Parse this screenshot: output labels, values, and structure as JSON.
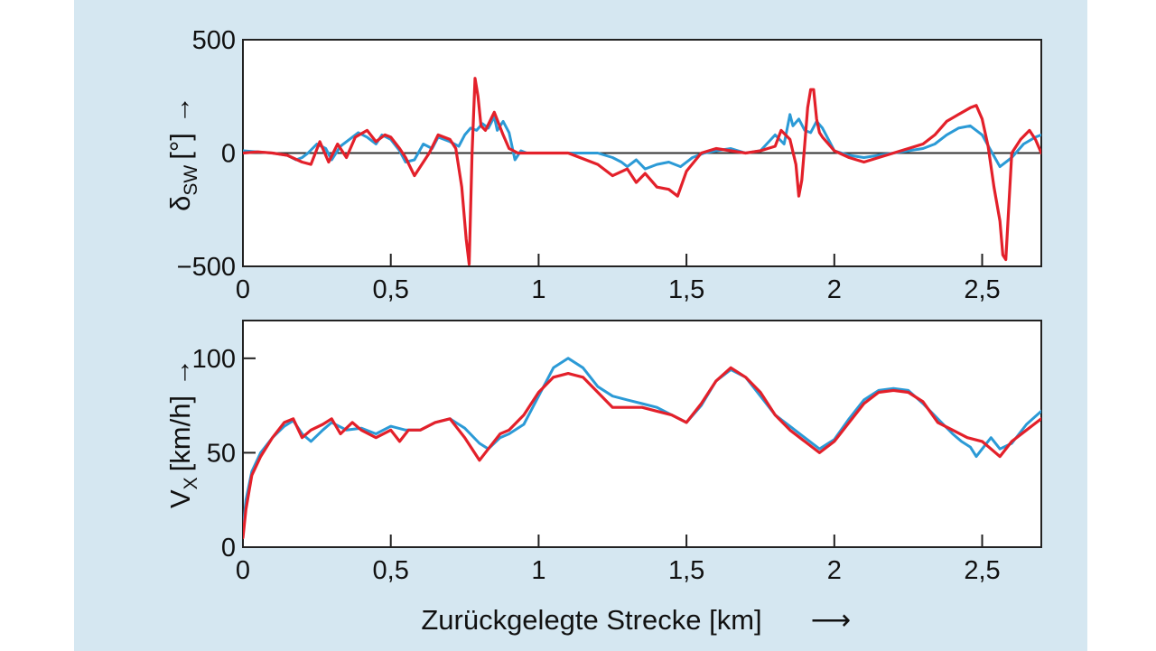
{
  "chart_data": [
    {
      "type": "line",
      "ylabel": "δ",
      "ylabel_sub": "SW",
      "ylabel_unit": "[°]",
      "arrow": "→",
      "xlim": [
        0,
        2.7
      ],
      "ylim": [
        -500,
        500
      ],
      "x_ticks": [
        0,
        0.5,
        1,
        1.5,
        2,
        2.5
      ],
      "x_tick_labels": [
        "0",
        "0,5",
        "1",
        "1,5",
        "2",
        "2,5"
      ],
      "y_ticks": [
        -500,
        0,
        500
      ],
      "y_tick_labels": [
        "−500",
        "0",
        "500"
      ],
      "zero_line": true,
      "grid": false,
      "series": [
        {
          "color": "#2b9ad6",
          "x": [
            0,
            0.05,
            0.1,
            0.15,
            0.18,
            0.2,
            0.22,
            0.25,
            0.28,
            0.3,
            0.33,
            0.36,
            0.39,
            0.42,
            0.45,
            0.47,
            0.5,
            0.53,
            0.55,
            0.58,
            0.61,
            0.64,
            0.66,
            0.7,
            0.73,
            0.75,
            0.77,
            0.79,
            0.81,
            0.83,
            0.85,
            0.86,
            0.88,
            0.9,
            0.92,
            0.94,
            0.96,
            1.0,
            1.1,
            1.2,
            1.25,
            1.28,
            1.3,
            1.33,
            1.36,
            1.4,
            1.44,
            1.48,
            1.52,
            1.56,
            1.6,
            1.65,
            1.7,
            1.75,
            1.8,
            1.83,
            1.85,
            1.86,
            1.88,
            1.9,
            1.92,
            1.94,
            1.96,
            1.98,
            2.0,
            2.05,
            2.1,
            2.15,
            2.2,
            2.25,
            2.3,
            2.34,
            2.38,
            2.42,
            2.46,
            2.5,
            2.53,
            2.56,
            2.6,
            2.64,
            2.68,
            2.7
          ],
          "y": [
            10,
            5,
            0,
            -10,
            -30,
            -20,
            0,
            40,
            20,
            -30,
            30,
            60,
            90,
            70,
            40,
            80,
            60,
            10,
            -40,
            -30,
            40,
            20,
            70,
            50,
            30,
            80,
            110,
            100,
            130,
            110,
            160,
            100,
            140,
            90,
            -30,
            10,
            0,
            0,
            0,
            0,
            -20,
            -40,
            -60,
            -30,
            -70,
            -50,
            -40,
            -60,
            -20,
            0,
            10,
            20,
            0,
            10,
            80,
            40,
            170,
            120,
            150,
            100,
            90,
            140,
            110,
            60,
            10,
            -10,
            -20,
            -10,
            0,
            10,
            20,
            40,
            80,
            110,
            120,
            80,
            10,
            -60,
            -20,
            40,
            70,
            80
          ]
        },
        {
          "color": "#e3202a",
          "x": [
            0,
            0.05,
            0.1,
            0.15,
            0.2,
            0.23,
            0.26,
            0.29,
            0.32,
            0.35,
            0.38,
            0.42,
            0.45,
            0.48,
            0.5,
            0.53,
            0.55,
            0.58,
            0.6,
            0.63,
            0.66,
            0.7,
            0.72,
            0.74,
            0.755,
            0.765,
            0.775,
            0.785,
            0.795,
            0.805,
            0.82,
            0.85,
            0.88,
            0.9,
            0.93,
            0.95,
            1.0,
            1.1,
            1.2,
            1.25,
            1.3,
            1.33,
            1.36,
            1.4,
            1.44,
            1.47,
            1.5,
            1.55,
            1.6,
            1.65,
            1.7,
            1.75,
            1.8,
            1.82,
            1.85,
            1.87,
            1.88,
            1.89,
            1.9,
            1.91,
            1.92,
            1.93,
            1.94,
            1.95,
            1.96,
            1.98,
            2.0,
            2.05,
            2.1,
            2.15,
            2.2,
            2.25,
            2.3,
            2.34,
            2.38,
            2.42,
            2.46,
            2.48,
            2.5,
            2.52,
            2.54,
            2.56,
            2.57,
            2.58,
            2.6,
            2.63,
            2.66,
            2.68,
            2.7
          ],
          "y": [
            0,
            5,
            0,
            -10,
            -40,
            -50,
            50,
            -40,
            40,
            -20,
            70,
            100,
            50,
            80,
            70,
            20,
            -20,
            -100,
            -60,
            0,
            80,
            60,
            20,
            -150,
            -380,
            -490,
            0,
            330,
            250,
            120,
            100,
            180,
            80,
            20,
            0,
            0,
            0,
            0,
            -50,
            -100,
            -70,
            -130,
            -90,
            -150,
            -160,
            -190,
            -80,
            0,
            20,
            10,
            0,
            10,
            30,
            100,
            60,
            -50,
            -190,
            -120,
            40,
            200,
            280,
            280,
            150,
            90,
            70,
            40,
            10,
            -20,
            -40,
            -20,
            0,
            20,
            40,
            80,
            140,
            170,
            200,
            210,
            150,
            30,
            -150,
            -300,
            -450,
            -470,
            0,
            60,
            100,
            60,
            0
          ]
        }
      ]
    },
    {
      "type": "line",
      "ylabel": "V",
      "ylabel_sub": "X",
      "ylabel_unit": "[km/h]",
      "arrow": "→",
      "xlabel": "Zurückgelegte Strecke [km]",
      "xlabel_arrow": "⟶",
      "xlim": [
        0,
        2.7
      ],
      "ylim": [
        0,
        120
      ],
      "x_ticks": [
        0,
        0.5,
        1,
        1.5,
        2,
        2.5
      ],
      "x_tick_labels": [
        "0",
        "0,5",
        "1",
        "1,5",
        "2",
        "2,5"
      ],
      "y_ticks": [
        0,
        50,
        100
      ],
      "y_tick_labels": [
        "0",
        "50",
        "100"
      ],
      "grid": false,
      "series": [
        {
          "color": "#2b9ad6",
          "x": [
            0,
            0.01,
            0.03,
            0.06,
            0.1,
            0.14,
            0.17,
            0.2,
            0.23,
            0.27,
            0.3,
            0.35,
            0.4,
            0.45,
            0.5,
            0.55,
            0.6,
            0.65,
            0.7,
            0.75,
            0.8,
            0.83,
            0.87,
            0.9,
            0.95,
            1.0,
            1.05,
            1.1,
            1.15,
            1.2,
            1.25,
            1.3,
            1.35,
            1.4,
            1.45,
            1.5,
            1.55,
            1.6,
            1.65,
            1.7,
            1.75,
            1.8,
            1.85,
            1.9,
            1.95,
            2.0,
            2.05,
            2.1,
            2.15,
            2.2,
            2.25,
            2.3,
            2.35,
            2.4,
            2.43,
            2.46,
            2.48,
            2.5,
            2.53,
            2.56,
            2.6,
            2.65,
            2.7
          ],
          "y": [
            8,
            25,
            40,
            50,
            58,
            64,
            67,
            60,
            56,
            62,
            66,
            62,
            63,
            60,
            64,
            62,
            62,
            66,
            68,
            63,
            55,
            52,
            58,
            60,
            65,
            80,
            95,
            100,
            95,
            85,
            80,
            78,
            76,
            74,
            70,
            66,
            75,
            88,
            94,
            90,
            80,
            70,
            64,
            58,
            52,
            57,
            68,
            78,
            83,
            84,
            83,
            76,
            68,
            60,
            56,
            53,
            48,
            52,
            58,
            52,
            55,
            65,
            72
          ]
        },
        {
          "color": "#e3202a",
          "x": [
            0,
            0.01,
            0.03,
            0.06,
            0.1,
            0.14,
            0.17,
            0.2,
            0.23,
            0.27,
            0.3,
            0.33,
            0.37,
            0.4,
            0.45,
            0.5,
            0.53,
            0.56,
            0.6,
            0.65,
            0.7,
            0.75,
            0.8,
            0.83,
            0.87,
            0.9,
            0.95,
            1.0,
            1.05,
            1.1,
            1.15,
            1.2,
            1.25,
            1.3,
            1.35,
            1.4,
            1.45,
            1.5,
            1.55,
            1.6,
            1.65,
            1.7,
            1.75,
            1.8,
            1.85,
            1.9,
            1.95,
            2.0,
            2.05,
            2.1,
            2.15,
            2.2,
            2.25,
            2.3,
            2.35,
            2.4,
            2.45,
            2.5,
            2.53,
            2.56,
            2.6,
            2.65,
            2.7
          ],
          "y": [
            5,
            20,
            38,
            48,
            58,
            66,
            68,
            58,
            62,
            65,
            68,
            60,
            66,
            62,
            58,
            62,
            56,
            62,
            62,
            66,
            68,
            58,
            46,
            52,
            60,
            62,
            70,
            82,
            90,
            92,
            90,
            82,
            74,
            74,
            74,
            72,
            70,
            66,
            76,
            88,
            95,
            90,
            82,
            70,
            62,
            56,
            50,
            56,
            66,
            76,
            82,
            83,
            82,
            77,
            66,
            62,
            58,
            56,
            52,
            48,
            56,
            62,
            68
          ]
        }
      ]
    }
  ]
}
